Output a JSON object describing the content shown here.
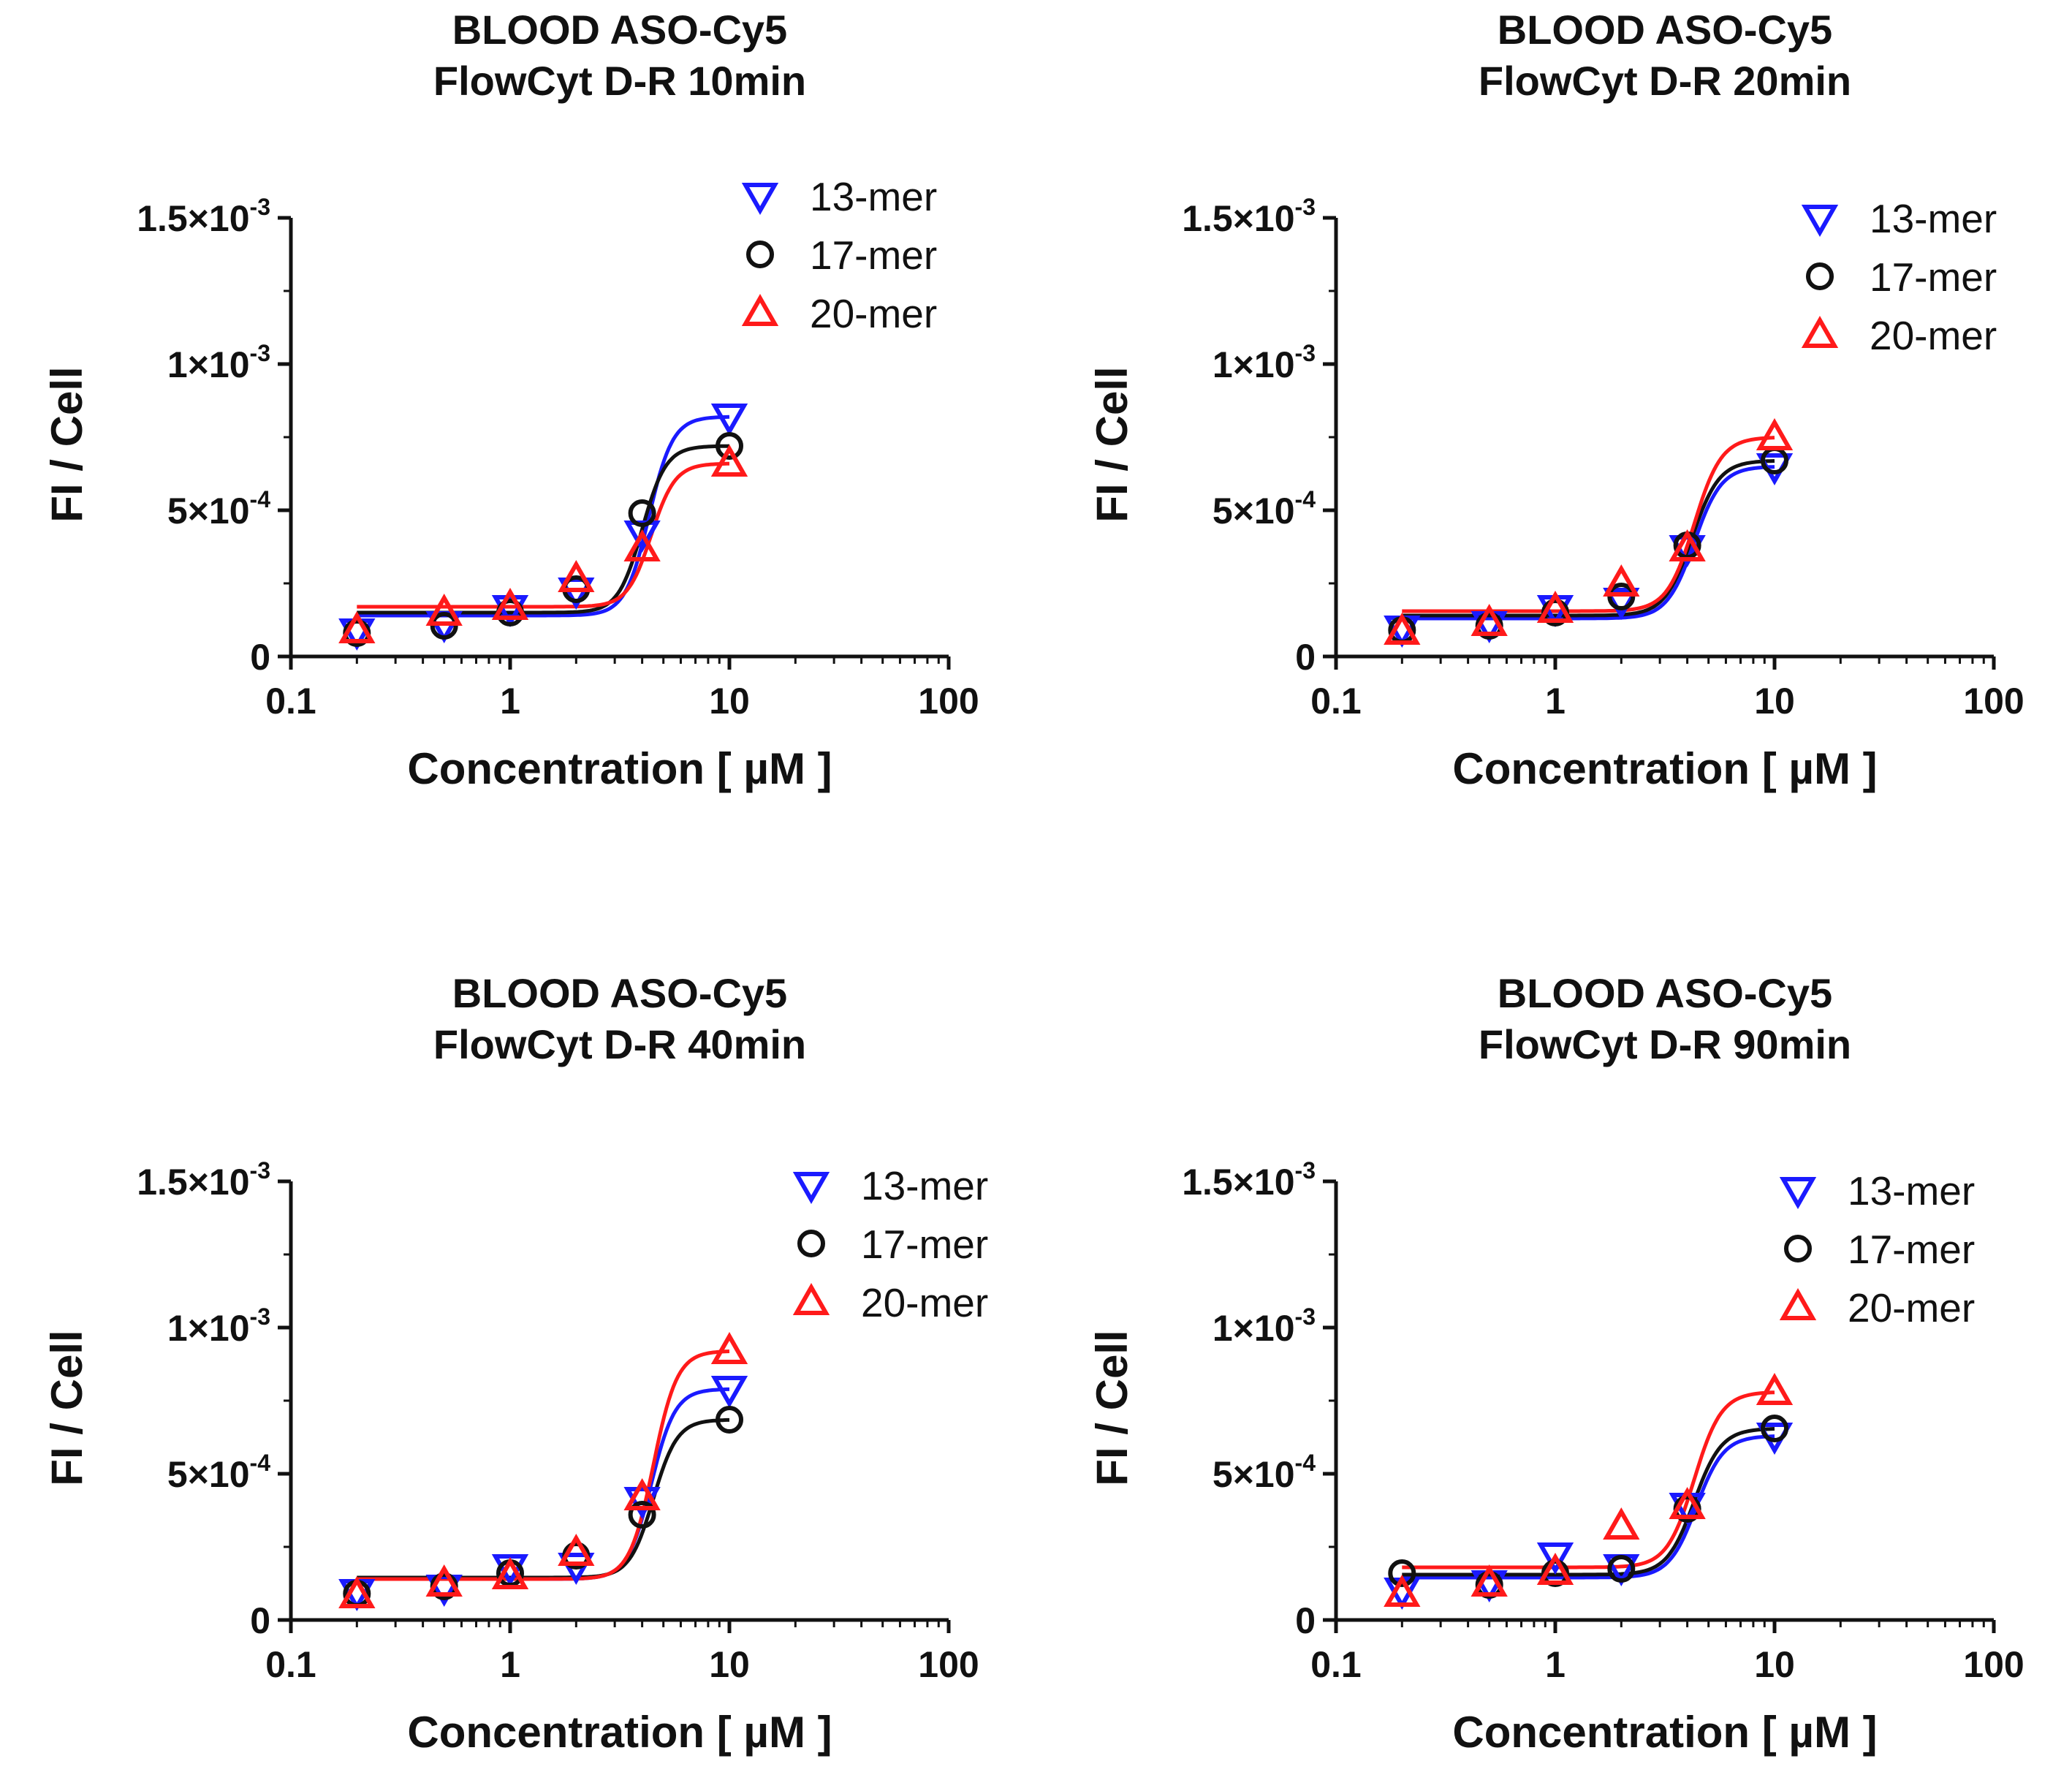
{
  "chart_data": [
    {
      "type": "scatter",
      "title": "BLOOD ASO-Cy5",
      "subtitle": "FlowCyt D-R 10min",
      "xlabel": "Concentration [ µM ]",
      "ylabel": "FI / Cell",
      "xscale": "log",
      "xlim": [
        0.1,
        100
      ],
      "ylim": [
        0,
        0.0015
      ],
      "xticks": [
        "0.1",
        "1",
        "10",
        "100"
      ],
      "yticks": [
        "0",
        "5×10-4",
        "1×10-3",
        "1.5×10-3"
      ],
      "legend_position": "top-right",
      "x": [
        0.2,
        0.5,
        1,
        2,
        4,
        10
      ],
      "series": [
        {
          "name": "13-mer",
          "marker": "triangle-down",
          "color": "#1a1aff",
          "values": [
            8.5e-05,
            0.00011,
            0.000165,
            0.000225,
            0.00042,
            0.00082
          ],
          "fit": {
            "bottom": 0.00014,
            "top": 0.00082,
            "ec50": 4.3,
            "hill": 8
          }
        },
        {
          "name": "17-mer",
          "marker": "circle",
          "color": "#111111",
          "values": [
            8e-05,
            0.000105,
            0.00015,
            0.00023,
            0.00049,
            0.00072
          ],
          "fit": {
            "bottom": 0.00015,
            "top": 0.00072,
            "ec50": 4.0,
            "hill": 8
          }
        },
        {
          "name": "20-mer",
          "marker": "triangle-up",
          "color": "#ff1a1a",
          "values": [
            9e-05,
            0.00015,
            0.00017,
            0.000265,
            0.00037,
            0.00066
          ],
          "fit": {
            "bottom": 0.00017,
            "top": 0.00066,
            "ec50": 4.4,
            "hill": 8
          }
        }
      ]
    },
    {
      "type": "scatter",
      "title": "BLOOD ASO-Cy5",
      "subtitle": "FlowCyt D-R 20min",
      "xlabel": "Concentration [ µM ]",
      "ylabel": "FI / Cell",
      "xscale": "log",
      "xlim": [
        0.1,
        100
      ],
      "ylim": [
        0,
        0.0015
      ],
      "xticks": [
        "0.1",
        "1",
        "10",
        "100"
      ],
      "yticks": [
        "0",
        "5×10-4",
        "1×10-3",
        "1.5×10-3"
      ],
      "legend_position": "top-right",
      "x": [
        0.2,
        0.5,
        1,
        2,
        4,
        10
      ],
      "series": [
        {
          "name": "13-mer",
          "marker": "triangle-down",
          "color": "#1a1aff",
          "values": [
            9.5e-05,
            0.00011,
            0.000165,
            0.00019,
            0.00037,
            0.00065
          ],
          "fit": {
            "bottom": 0.00013,
            "top": 0.00065,
            "ec50": 4.3,
            "hill": 7
          }
        },
        {
          "name": "17-mer",
          "marker": "circle",
          "color": "#111111",
          "values": [
            9e-05,
            0.000105,
            0.00015,
            0.000205,
            0.00038,
            0.00067
          ],
          "fit": {
            "bottom": 0.00014,
            "top": 0.00067,
            "ec50": 4.2,
            "hill": 7
          }
        },
        {
          "name": "20-mer",
          "marker": "triangle-up",
          "color": "#ff1a1a",
          "values": [
            8.5e-05,
            0.000115,
            0.00016,
            0.00025,
            0.00037,
            0.00075
          ],
          "fit": {
            "bottom": 0.000155,
            "top": 0.00075,
            "ec50": 4.3,
            "hill": 7
          }
        }
      ]
    },
    {
      "type": "scatter",
      "title": "BLOOD ASO-Cy5",
      "subtitle": "FlowCyt D-R 40min",
      "xlabel": "Concentration [ µM ]",
      "ylabel": "FI / Cell",
      "xscale": "log",
      "xlim": [
        0.1,
        100
      ],
      "ylim": [
        0,
        0.0015
      ],
      "xticks": [
        "0.1",
        "1",
        "10",
        "100"
      ],
      "yticks": [
        "0",
        "5×10-4",
        "1×10-3",
        "1.5×10-3"
      ],
      "legend_position": "top-right",
      "x": [
        0.2,
        0.5,
        1,
        2,
        4,
        10
      ],
      "series": [
        {
          "name": "13-mer",
          "marker": "triangle-down",
          "color": "#1a1aff",
          "values": [
            9.5e-05,
            0.00011,
            0.00018,
            0.000185,
            0.00041,
            0.00079
          ],
          "fit": {
            "bottom": 0.00014,
            "top": 0.00079,
            "ec50": 4.4,
            "hill": 8
          }
        },
        {
          "name": "17-mer",
          "marker": "circle",
          "color": "#111111",
          "values": [
            9e-05,
            0.000115,
            0.00016,
            0.00022,
            0.00036,
            0.000685
          ],
          "fit": {
            "bottom": 0.000145,
            "top": 0.000685,
            "ec50": 4.5,
            "hill": 8
          }
        },
        {
          "name": "20-mer",
          "marker": "triangle-up",
          "color": "#ff1a1a",
          "values": [
            8.5e-05,
            0.000125,
            0.00015,
            0.00023,
            0.00042,
            0.00092
          ],
          "fit": {
            "bottom": 0.00014,
            "top": 0.00092,
            "ec50": 4.5,
            "hill": 8
          }
        }
      ]
    },
    {
      "type": "scatter",
      "title": "BLOOD ASO-Cy5",
      "subtitle": "FlowCyt D-R 90min",
      "xlabel": "Concentration [ µM ]",
      "ylabel": "FI / Cell",
      "xscale": "log",
      "xlim": [
        0.1,
        100
      ],
      "ylim": [
        0,
        0.0015
      ],
      "xticks": [
        "0.1",
        "1",
        "10",
        "100"
      ],
      "yticks": [
        "0",
        "5×10-4",
        "1×10-3",
        "1.5×10-3"
      ],
      "legend_position": "top-right",
      "x": [
        0.2,
        0.5,
        1,
        2,
        4,
        10
      ],
      "series": [
        {
          "name": "13-mer",
          "marker": "triangle-down",
          "color": "#1a1aff",
          "values": [
            0.0001,
            0.000125,
            0.00022,
            0.00018,
            0.00039,
            0.00063
          ],
          "fit": {
            "bottom": 0.000145,
            "top": 0.00063,
            "ec50": 4.4,
            "hill": 7
          }
        },
        {
          "name": "17-mer",
          "marker": "circle",
          "color": "#111111",
          "values": [
            0.00016,
            0.00012,
            0.00016,
            0.000175,
            0.00038,
            0.000655
          ],
          "fit": {
            "bottom": 0.000155,
            "top": 0.000655,
            "ec50": 4.3,
            "hill": 7
          }
        },
        {
          "name": "20-mer",
          "marker": "triangle-up",
          "color": "#ff1a1a",
          "values": [
            9e-05,
            0.000125,
            0.000165,
            0.00032,
            0.00039,
            0.00078
          ],
          "fit": {
            "bottom": 0.00018,
            "top": 0.00078,
            "ec50": 4.3,
            "hill": 7
          }
        }
      ]
    }
  ]
}
